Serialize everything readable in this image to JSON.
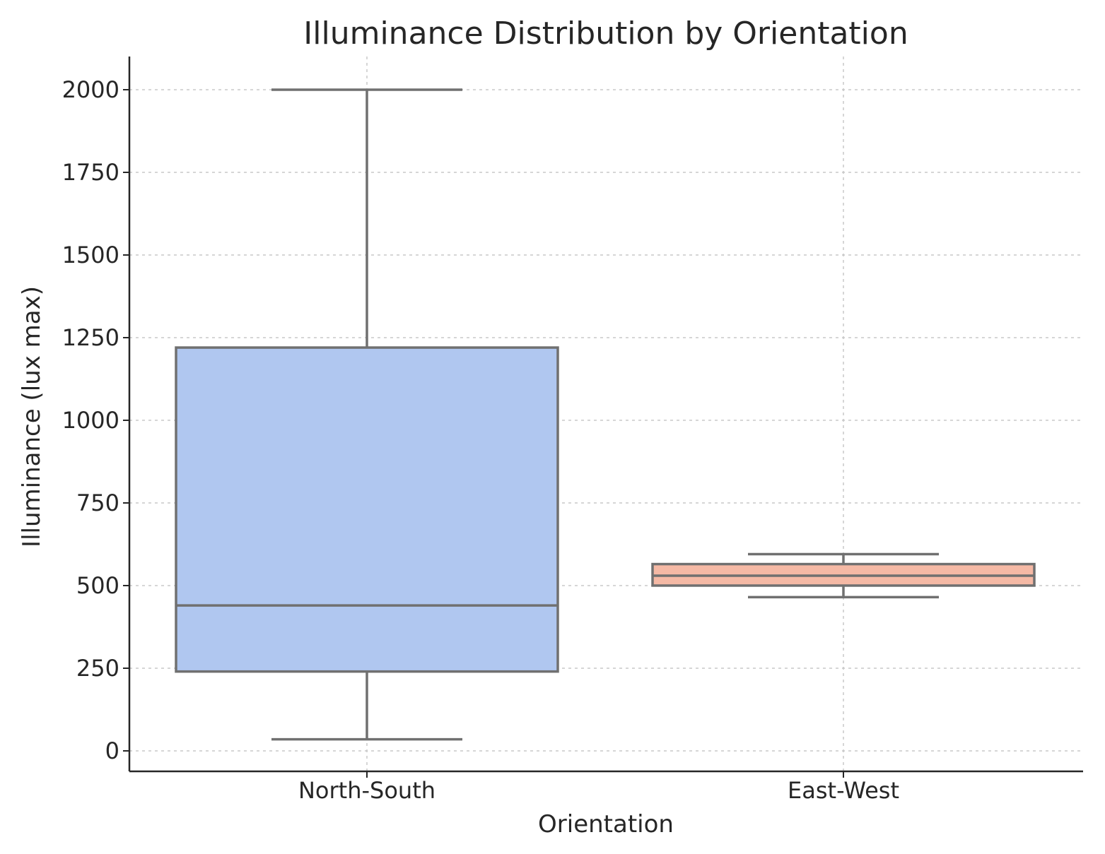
{
  "chart_data": {
    "type": "box",
    "title": "Illuminance Distribution by Orientation",
    "xlabel": "Orientation",
    "ylabel": "Illuminance (lux max)",
    "ylim": [
      -55,
      2100
    ],
    "yticks": [
      0,
      250,
      500,
      750,
      1000,
      1250,
      1500,
      1750,
      2000
    ],
    "grid": true,
    "categories": [
      "North-South",
      "East-West"
    ],
    "boxes": [
      {
        "category": "North-South",
        "whisker_low": 35,
        "q1": 240,
        "median": 440,
        "q3": 1220,
        "whisker_high": 2000,
        "color": "#b0c7f0"
      },
      {
        "category": "East-West",
        "whisker_low": 465,
        "q1": 500,
        "median": 530,
        "q3": 565,
        "whisker_high": 595,
        "color": "#f5b9a5"
      }
    ]
  }
}
